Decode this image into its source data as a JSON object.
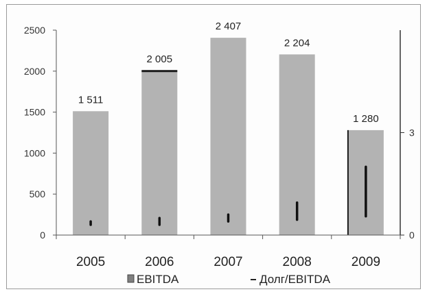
{
  "chart_data": {
    "type": "bar",
    "categories": [
      "2005",
      "2006",
      "2007",
      "2008",
      "2009"
    ],
    "series": [
      {
        "name": "EBITDA",
        "axis": "left",
        "kind": "bar",
        "values": [
          1511,
          2005,
          2407,
          2204,
          1280
        ],
        "data_labels": [
          "1 511",
          "2 005",
          "2 407",
          "2 204",
          "1 280"
        ],
        "color": "#b3b3b3"
      },
      {
        "name": "Долг/EBITDA",
        "axis": "right",
        "kind": "line-segments",
        "low_values": [
          0.3,
          0.3,
          0.4,
          0.45,
          0.55
        ],
        "high_values": [
          0.4,
          0.5,
          0.6,
          0.95,
          2.0
        ],
        "color": "#111111"
      }
    ],
    "y_left": {
      "min": 0,
      "max": 2500,
      "ticks": [
        0,
        500,
        1000,
        1500,
        2000,
        2500
      ]
    },
    "y_right": {
      "min": 0,
      "max": 6,
      "ticks": [
        0,
        3
      ],
      "tick_labels": [
        "0",
        "3"
      ]
    },
    "grid": false,
    "legend_position": "bottom",
    "legend": [
      {
        "label": "EBITDA",
        "marker": "square"
      },
      {
        "label": "Долг/EBITDA",
        "marker": "line"
      }
    ]
  }
}
